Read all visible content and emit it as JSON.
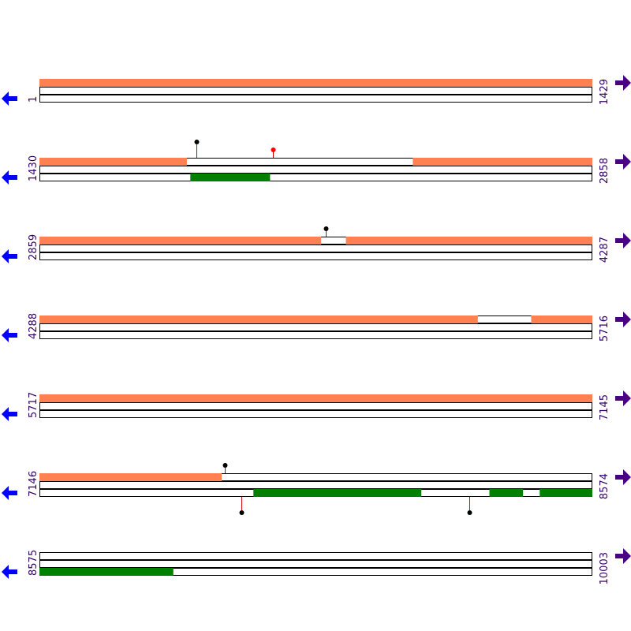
{
  "colors": {
    "orf_forward": "#ff8050",
    "orf_reverse": "#008000",
    "track_outline": "#000000",
    "marker_line": "#cc0000",
    "marker_head_black": "#000000",
    "marker_head_red": "#ff0000",
    "left_arrow": "#0000ff",
    "right_arrow": "#4b0082",
    "coord_text": "#330066"
  },
  "icons": {
    "left": "arrow-left-icon",
    "right": "arrow-right-icon"
  },
  "rows": [
    {
      "start": "1",
      "end": "1429",
      "from": 1,
      "to": 1429,
      "tracks": [
        {
          "segments": [
            [
              1,
              1429
            ]
          ],
          "color": "orf_forward"
        },
        {
          "segments": [],
          "color": "orf_forward"
        },
        {
          "segments": [],
          "color": "orf_reverse"
        }
      ],
      "markers": []
    },
    {
      "start": "1430",
      "end": "2858",
      "from": 1430,
      "to": 2858,
      "tracks": [
        {
          "segments": [
            [
              1430,
              1810
            ],
            [
              2395,
              2858
            ]
          ],
          "color": "orf_forward"
        },
        {
          "segments": [],
          "color": "orf_forward"
        },
        {
          "segments": [
            [
              1820,
              2025
            ]
          ],
          "color": "orf_reverse"
        }
      ],
      "markers": [
        {
          "pos": 1836,
          "dir": "up",
          "head": "black",
          "length": 20
        },
        {
          "pos": 2034,
          "dir": "up",
          "head": "red",
          "length": 10
        }
      ]
    },
    {
      "start": "2859",
      "end": "4287",
      "from": 2859,
      "to": 4287,
      "tracks": [
        {
          "segments": [
            [
              2859,
              3586
            ],
            [
              3651,
              4287
            ]
          ],
          "color": "orf_forward"
        },
        {
          "segments": [],
          "color": "orf_forward"
        },
        {
          "segments": [],
          "color": "orf_reverse"
        }
      ],
      "markers": [
        {
          "pos": 3600,
          "dir": "up",
          "head": "black",
          "length": 10
        }
      ]
    },
    {
      "start": "4288",
      "end": "5716",
      "from": 4288,
      "to": 5716,
      "tracks": [
        {
          "segments": [
            [
              4288,
              5420
            ],
            [
              5559,
              5716
            ]
          ],
          "color": "orf_forward"
        },
        {
          "segments": [],
          "color": "orf_forward"
        },
        {
          "segments": [],
          "color": "orf_reverse"
        }
      ],
      "markers": []
    },
    {
      "start": "5717",
      "end": "7145",
      "from": 5717,
      "to": 7145,
      "tracks": [
        {
          "segments": [
            [
              5717,
              7145
            ]
          ],
          "color": "orf_forward"
        },
        {
          "segments": [],
          "color": "orf_forward"
        },
        {
          "segments": [],
          "color": "orf_reverse"
        }
      ],
      "markers": []
    },
    {
      "start": "7146",
      "end": "8574",
      "from": 7146,
      "to": 8574,
      "tracks": [
        {
          "segments": [
            [
              7146,
              7616
            ]
          ],
          "color": "orf_forward"
        },
        {
          "segments": [],
          "color": "orf_forward"
        },
        {
          "segments": [
            [
              7699,
              8132
            ],
            [
              8309,
              8395
            ],
            [
              8439,
              8574
            ]
          ],
          "color": "orf_reverse"
        }
      ],
      "markers": [
        {
          "pos": 7626,
          "dir": "up",
          "head": "black",
          "length": 10
        },
        {
          "pos": 7667,
          "dir": "down",
          "head": "black",
          "length": 20
        },
        {
          "pos": 8258,
          "dir": "down",
          "head": "black",
          "length": 20
        }
      ]
    },
    {
      "start": "8575",
      "end": "10003",
      "from": 8575,
      "to": 10003,
      "tracks": [
        {
          "segments": [],
          "color": "orf_forward"
        },
        {
          "segments": [],
          "color": "orf_forward"
        },
        {
          "segments": [
            [
              8575,
              8920
            ]
          ],
          "color": "orf_reverse"
        }
      ],
      "markers": []
    }
  ]
}
